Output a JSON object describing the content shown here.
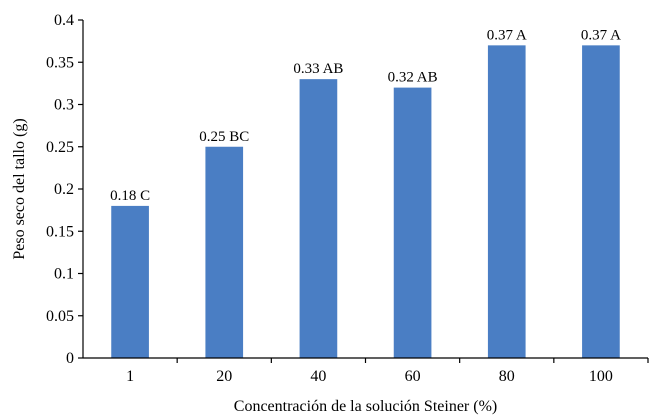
{
  "chart_data": {
    "type": "bar",
    "title": "",
    "xlabel": "Concentración de la solución Steiner (%)",
    "ylabel": "Peso seco del tallo (g)",
    "categories": [
      "1",
      "20",
      "40",
      "60",
      "80",
      "100"
    ],
    "values": [
      0.18,
      0.25,
      0.33,
      0.32,
      0.37,
      0.37
    ],
    "data_labels": [
      "0.18 C",
      "0.25 BC",
      "0.33 AB",
      "0.32 AB",
      "0.37 A",
      "0.37 A"
    ],
    "yticks": [
      "0",
      "0.05",
      "0.1",
      "0.15",
      "0.2",
      "0.25",
      "0.3",
      "0.35",
      "0.4"
    ],
    "ylim": [
      0,
      0.4
    ],
    "grid": false,
    "legend": "none",
    "bar_color": "#4a7ec4"
  }
}
